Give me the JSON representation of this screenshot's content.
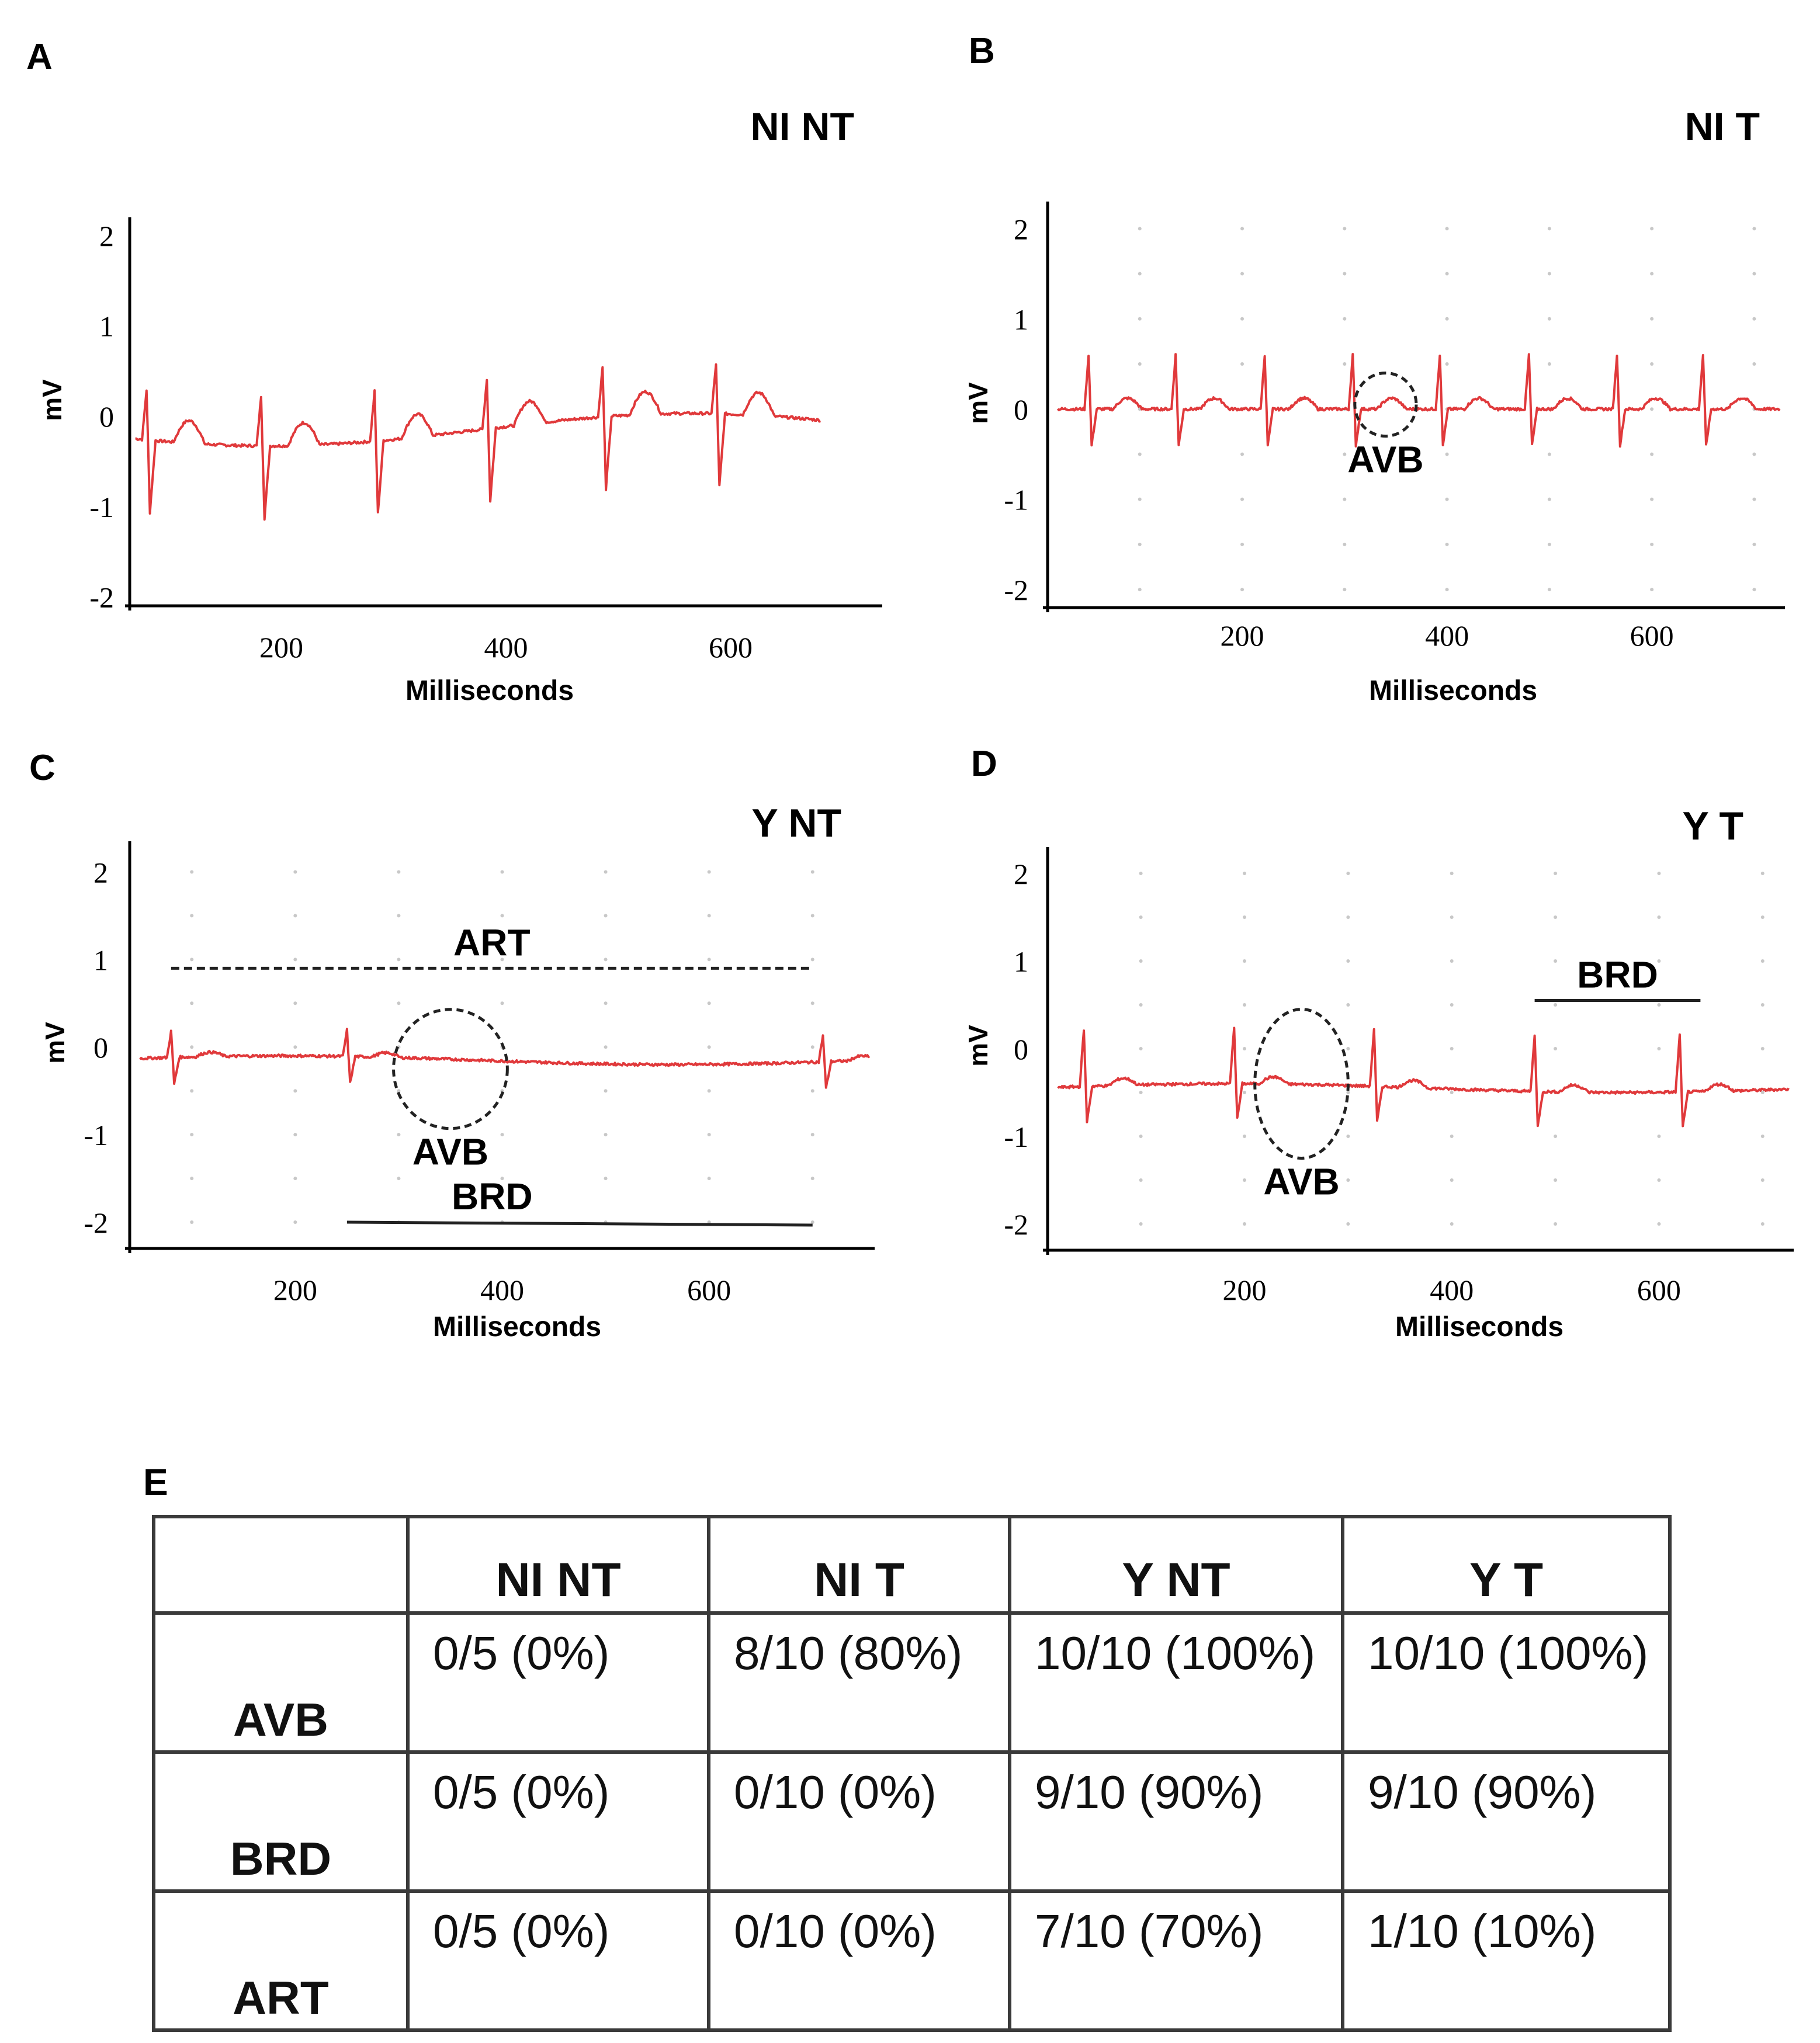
{
  "panel_letters": [
    "A",
    "B",
    "C",
    "D"
  ],
  "colors": {
    "trace": "#e0393b",
    "axis": "#000000",
    "grid_dot": "#c8c8c8",
    "table_border": "#3a3a3a"
  },
  "chart_data": [
    {
      "type": "line",
      "panel": "A",
      "title": "NI NT",
      "xlabel": "Milliseconds",
      "ylabel": "mV",
      "xticks": [
        200,
        400,
        600
      ],
      "yticks": [
        2,
        1,
        0,
        -1,
        -2
      ],
      "xlim": [
        65,
        735
      ],
      "ylim": [
        -2.1,
        2.2
      ],
      "grid": false,
      "series": [
        {
          "name": "ECG",
          "baseline": -0.15,
          "baseline_drift": -0.18,
          "beats_ms": [
            80,
            182,
            283,
            383,
            486,
            587
          ],
          "r_amp": 0.55,
          "s_amp": -0.8,
          "t_amp": 0.25,
          "noise": 0.03
        }
      ],
      "annotations": []
    },
    {
      "type": "line",
      "panel": "B",
      "title": "NI T",
      "xlabel": "Milliseconds",
      "ylabel": "mV",
      "xticks": [
        200,
        400,
        600
      ],
      "yticks": [
        2,
        1,
        0,
        -1,
        -2
      ],
      "xlim": [
        10,
        730
      ],
      "ylim": [
        -2.2,
        2.3
      ],
      "grid": true,
      "series": [
        {
          "name": "ECG",
          "baseline": 0.0,
          "baseline_drift": 0.0,
          "beats_ms": [
            50,
            135,
            222,
            308,
            393,
            480,
            566,
            650
          ],
          "r_amp": 0.6,
          "s_amp": -0.4,
          "t_amp": 0.12,
          "noise": 0.03
        }
      ],
      "annotations": [
        {
          "text": "AVB",
          "kind": "circle",
          "x": 340,
          "y": 0.05,
          "rx": 30,
          "ry": 0.35
        }
      ]
    },
    {
      "type": "line",
      "panel": "C",
      "title": "Y NT",
      "xlabel": "Milliseconds",
      "ylabel": "mV",
      "xticks": [
        200,
        400,
        600
      ],
      "yticks": [
        2,
        1,
        0,
        -1,
        -2
      ],
      "xlim": [
        40,
        760
      ],
      "ylim": [
        -2.3,
        2.35
      ],
      "grid": true,
      "series": [
        {
          "name": "ECG",
          "baseline": -0.15,
          "baseline_drift": 0.05,
          "beats_ms": [
            80,
            250,
            710
          ],
          "r_amp": 0.3,
          "s_amp": -0.3,
          "t_amp": 0.05,
          "noise": 0.03
        }
      ],
      "annotations": [
        {
          "text": "ART",
          "kind": "dashed-line",
          "x1": 80,
          "x2": 700,
          "y": 0.9
        },
        {
          "text": "AVB",
          "kind": "circle",
          "x": 350,
          "y": -0.25,
          "rx": 55,
          "ry": 0.68
        },
        {
          "text": "BRD",
          "kind": "line",
          "x1": 250,
          "x2": 700,
          "y": -2.0
        }
      ]
    },
    {
      "type": "line",
      "panel": "D",
      "title": "Y T",
      "xlabel": "Milliseconds",
      "ylabel": "mV",
      "xticks": [
        200,
        400,
        600
      ],
      "yticks": [
        2,
        1,
        0,
        -1,
        -2
      ],
      "xlim": [
        10,
        730
      ],
      "ylim": [
        -2.3,
        2.3
      ],
      "grid": true,
      "series": [
        {
          "name": "ECG",
          "baseline": -0.45,
          "baseline_drift": 0.05,
          "beats_ms": [
            45,
            190,
            325,
            480,
            620
          ],
          "r_amp": 0.65,
          "s_amp": -0.4,
          "t_amp": 0.08,
          "noise": 0.03
        }
      ],
      "annotations": [
        {
          "text": "AVB",
          "kind": "circle",
          "x": 255,
          "y": -0.4,
          "rx": 45,
          "ry": 0.85
        },
        {
          "text": "BRD",
          "kind": "line",
          "x1": 480,
          "x2": 640,
          "y": 0.55
        }
      ]
    }
  ],
  "table": {
    "label": "E",
    "columns": [
      "",
      "NI NT",
      "NI T",
      "Y NT",
      "Y T"
    ],
    "rows": [
      {
        "label": "AVB",
        "cells": [
          "0/5 (0%)",
          "8/10 (80%)",
          "10/10 (100%)",
          "10/10 (100%)"
        ]
      },
      {
        "label": "BRD",
        "cells": [
          "0/5 (0%)",
          "0/10 (0%)",
          "9/10 (90%)",
          "9/10 (90%)"
        ]
      },
      {
        "label": "ART",
        "cells": [
          "0/5 (0%)",
          "0/10 (0%)",
          "7/10 (70%)",
          "1/10 (10%)"
        ]
      }
    ]
  }
}
